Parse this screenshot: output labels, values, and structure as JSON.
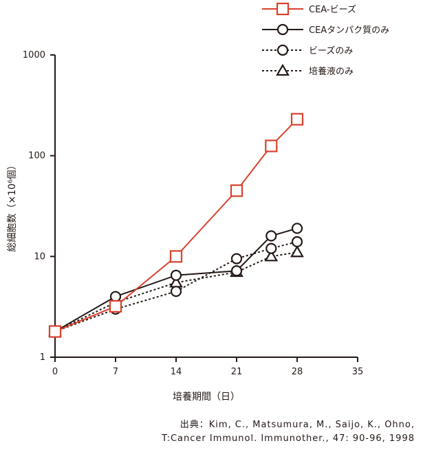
{
  "chart_data": {
    "type": "line",
    "x_axis": {
      "label": "培養期間（日）",
      "ticks": [
        0,
        7,
        14,
        21,
        28,
        35
      ],
      "range": [
        0,
        35
      ]
    },
    "y_axis": {
      "label": "総細胞数（×10⁶個）",
      "scale": "log",
      "ticks": [
        1,
        10,
        100,
        1000
      ],
      "tick_labels": [
        "1",
        "10",
        "100",
        "1000"
      ],
      "range": [
        1,
        1000
      ]
    },
    "legend_position": "top-right",
    "grid": false,
    "series": [
      {
        "name": "CEA-ビーズ",
        "color": "#d9402b",
        "line_style": "solid",
        "marker": "square",
        "points": [
          [
            0,
            1.8
          ],
          [
            7,
            3.2
          ],
          [
            14,
            10
          ],
          [
            21,
            45
          ],
          [
            25,
            125
          ],
          [
            28,
            230
          ]
        ]
      },
      {
        "name": "CEAタンパク質のみ",
        "color": "#231815",
        "line_style": "solid",
        "marker": "circle",
        "points": [
          [
            0,
            1.8
          ],
          [
            7,
            4.0
          ],
          [
            14,
            6.5
          ],
          [
            21,
            7.2
          ],
          [
            25,
            16
          ],
          [
            28,
            19
          ]
        ]
      },
      {
        "name": "ビーズのみ",
        "color": "#231815",
        "line_style": "dotted",
        "marker": "circle",
        "points": [
          [
            0,
            1.8
          ],
          [
            7,
            3.0
          ],
          [
            14,
            4.5
          ],
          [
            21,
            9.5
          ],
          [
            25,
            12
          ],
          [
            28,
            14
          ]
        ]
      },
      {
        "name": "培養液のみ",
        "color": "#231815",
        "line_style": "dotted",
        "marker": "triangle",
        "points": [
          [
            0,
            1.8
          ],
          [
            7,
            3.5
          ],
          [
            14,
            5.5
          ],
          [
            21,
            7.0
          ],
          [
            25,
            10
          ],
          [
            28,
            11
          ]
        ]
      }
    ]
  },
  "source": {
    "line1": "出典：Kim, C., Matsumura, M., Saijo, K., Ohno,",
    "line2": "T:Cancer Immunol. Immunother., 47: 90-96, 1998"
  }
}
